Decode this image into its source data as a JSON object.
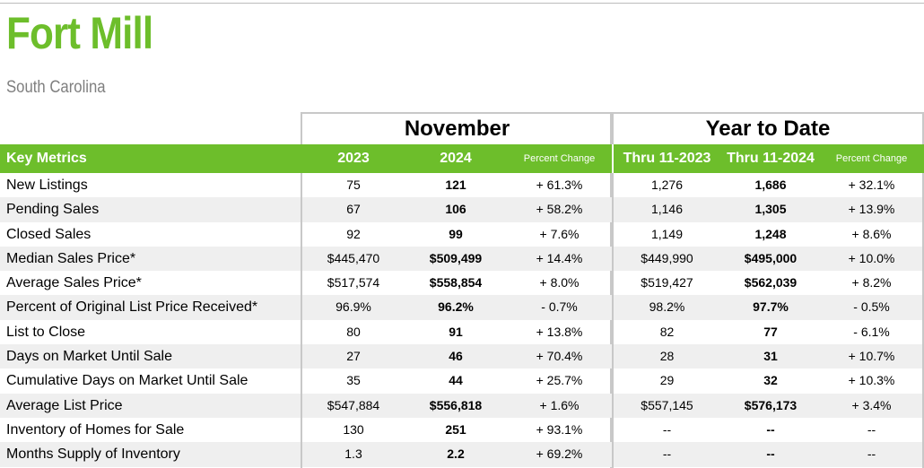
{
  "title": "Fort Mill",
  "subtitle": "South Carolina",
  "groups": {
    "november": "November",
    "ytd": "Year to Date"
  },
  "header": {
    "label": "Key Metrics",
    "nov_prev": "2023",
    "nov_curr": "2024",
    "nov_pct": "Percent Change",
    "ytd_prev": "Thru 11-2023",
    "ytd_curr": "Thru 11-2024",
    "ytd_pct": "Percent Change"
  },
  "colors": {
    "brand_green": "#6dbe2b",
    "subtitle_gray": "#7f7f7f",
    "stripe": "#efefef"
  },
  "rows": [
    {
      "metric": "New Listings",
      "nov_prev": "75",
      "nov_curr": "121",
      "nov_pct": "+ 61.3%",
      "ytd_prev": "1,276",
      "ytd_curr": "1,686",
      "ytd_pct": "+ 32.1%"
    },
    {
      "metric": "Pending Sales",
      "nov_prev": "67",
      "nov_curr": "106",
      "nov_pct": "+ 58.2%",
      "ytd_prev": "1,146",
      "ytd_curr": "1,305",
      "ytd_pct": "+ 13.9%"
    },
    {
      "metric": "Closed Sales",
      "nov_prev": "92",
      "nov_curr": "99",
      "nov_pct": "+ 7.6%",
      "ytd_prev": "1,149",
      "ytd_curr": "1,248",
      "ytd_pct": "+ 8.6%"
    },
    {
      "metric": "Median Sales Price*",
      "nov_prev": "$445,470",
      "nov_curr": "$509,499",
      "nov_pct": "+ 14.4%",
      "ytd_prev": "$449,990",
      "ytd_curr": "$495,000",
      "ytd_pct": "+ 10.0%"
    },
    {
      "metric": "Average Sales Price*",
      "nov_prev": "$517,574",
      "nov_curr": "$558,854",
      "nov_pct": "+ 8.0%",
      "ytd_prev": "$519,427",
      "ytd_curr": "$562,039",
      "ytd_pct": "+ 8.2%"
    },
    {
      "metric": "Percent of Original List Price Received*",
      "nov_prev": "96.9%",
      "nov_curr": "96.2%",
      "nov_pct": "- 0.7%",
      "ytd_prev": "98.2%",
      "ytd_curr": "97.7%",
      "ytd_pct": "- 0.5%"
    },
    {
      "metric": "List to Close",
      "nov_prev": "80",
      "nov_curr": "91",
      "nov_pct": "+ 13.8%",
      "ytd_prev": "82",
      "ytd_curr": "77",
      "ytd_pct": "- 6.1%"
    },
    {
      "metric": "Days on Market Until Sale",
      "nov_prev": "27",
      "nov_curr": "46",
      "nov_pct": "+ 70.4%",
      "ytd_prev": "28",
      "ytd_curr": "31",
      "ytd_pct": "+ 10.7%"
    },
    {
      "metric": "Cumulative Days on Market Until Sale",
      "nov_prev": "35",
      "nov_curr": "44",
      "nov_pct": "+ 25.7%",
      "ytd_prev": "29",
      "ytd_curr": "32",
      "ytd_pct": "+ 10.3%"
    },
    {
      "metric": "Average List Price",
      "nov_prev": "$547,884",
      "nov_curr": "$556,818",
      "nov_pct": "+ 1.6%",
      "ytd_prev": "$557,145",
      "ytd_curr": "$576,173",
      "ytd_pct": "+ 3.4%"
    },
    {
      "metric": "Inventory of Homes for Sale",
      "nov_prev": "130",
      "nov_curr": "251",
      "nov_pct": "+ 93.1%",
      "ytd_prev": "--",
      "ytd_curr": "--",
      "ytd_pct": "--"
    },
    {
      "metric": "Months Supply of Inventory",
      "nov_prev": "1.3",
      "nov_curr": "2.2",
      "nov_pct": "+ 69.2%",
      "ytd_prev": "--",
      "ytd_curr": "--",
      "ytd_pct": "--"
    }
  ]
}
